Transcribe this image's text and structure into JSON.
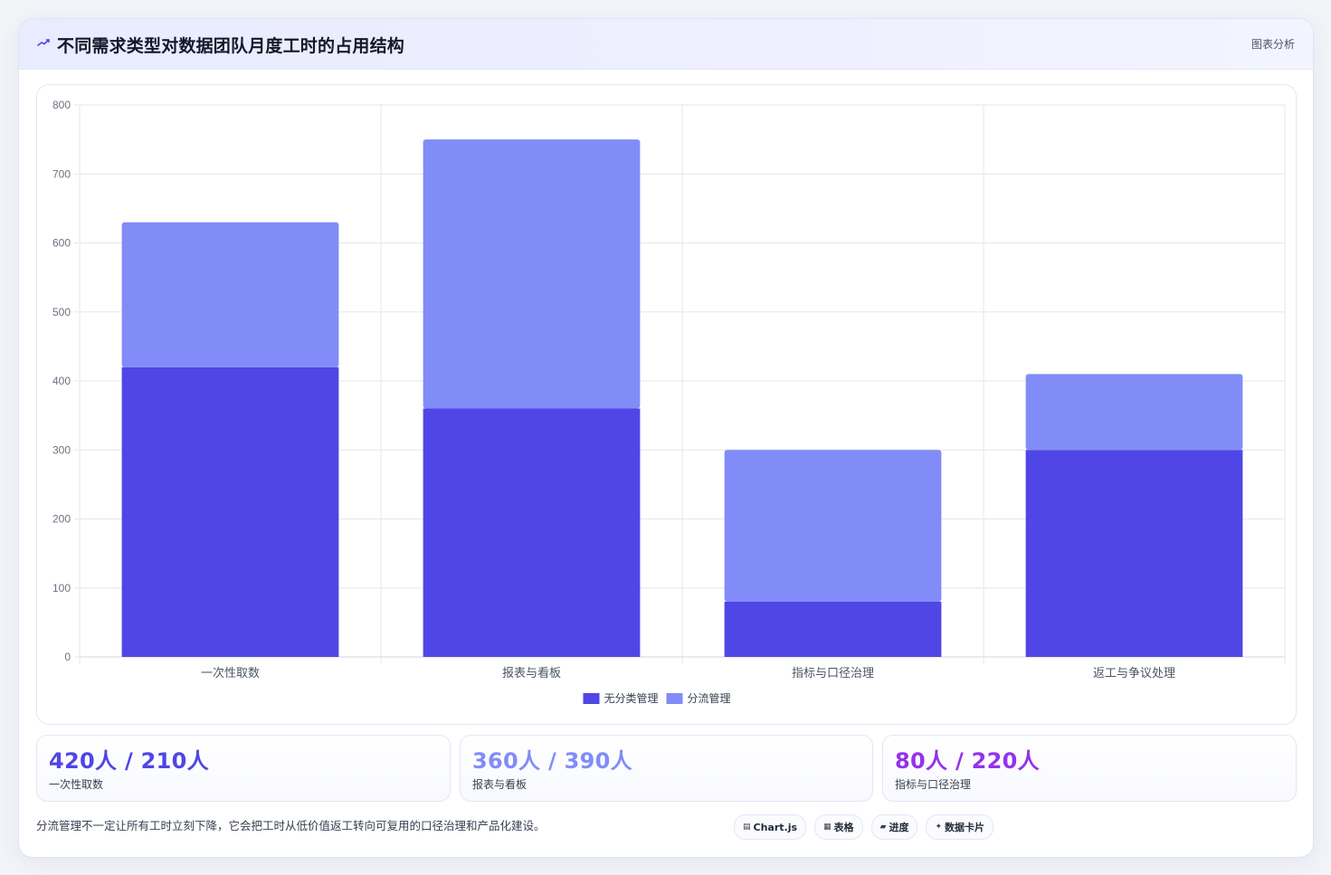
{
  "header": {
    "icon": "trend-line-icon",
    "title": "不同需求类型对数据团队月度工时的占用结构",
    "link_label": "图表分析"
  },
  "colors": {
    "series_dark": "#4f46e5",
    "series_light": "#818cf8",
    "stat_value_1": "#4f46e5",
    "stat_value_2": "#818cf8",
    "stat_value_3": "#9333ea",
    "grid": "#e5e7eb",
    "tick_text": "#6b7280"
  },
  "chart_data": {
    "type": "bar",
    "stacked": true,
    "categories": [
      "一次性取数",
      "报表与看板",
      "指标与口径治理",
      "返工与争议处理"
    ],
    "series": [
      {
        "name": "无分类管理",
        "values": [
          420,
          360,
          80,
          300
        ]
      },
      {
        "name": "分流管理",
        "values": [
          210,
          390,
          220,
          110
        ]
      }
    ],
    "yticks": [
      "0",
      "100",
      "200",
      "300",
      "400",
      "500",
      "600",
      "700",
      "800"
    ],
    "ylim": [
      0,
      800
    ],
    "grid": true,
    "legend_position": "bottom-center",
    "title": "",
    "xlabel": "",
    "ylabel": ""
  },
  "stats": [
    {
      "value": "420人 / 210人",
      "label": "一次性取数"
    },
    {
      "value": "360人 / 390人",
      "label": "报表与看板"
    },
    {
      "value": "80人 / 220人",
      "label": "指标与口径治理"
    }
  ],
  "footer": {
    "note": "分流管理不一定让所有工时立刻下降，它会把工时从低价值返工转向可复用的口径治理和产品化建设。",
    "chips": [
      {
        "icon": "chart-icon",
        "glyph": "▤",
        "label": "Chart.js"
      },
      {
        "icon": "table-icon",
        "glyph": "▦",
        "label": "表格"
      },
      {
        "icon": "progress-icon",
        "glyph": "▰",
        "label": "进度"
      },
      {
        "icon": "sparkle-icon",
        "glyph": "✦",
        "label": "数据卡片"
      }
    ]
  }
}
